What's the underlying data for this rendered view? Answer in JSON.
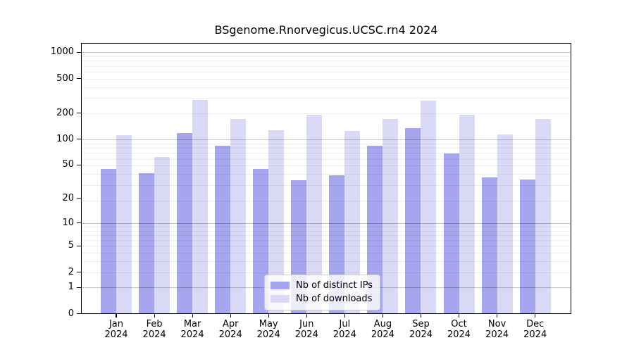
{
  "chart_data": {
    "type": "bar",
    "title": "BSgenome.Rnorvegicus.UCSC.rn4 2024",
    "categories": [
      "Jan 2024",
      "Feb 2024",
      "Mar 2024",
      "Apr 2024",
      "May 2024",
      "Jun 2024",
      "Jul 2024",
      "Aug 2024",
      "Sep 2024",
      "Oct 2024",
      "Nov 2024",
      "Dec 2024"
    ],
    "series": [
      {
        "name": "Nb of distinct IPs",
        "color": "#a6a6ee",
        "values": [
          45,
          40,
          118,
          84,
          45,
          33,
          38,
          84,
          135,
          68,
          36,
          34
        ]
      },
      {
        "name": "Nb of downloads",
        "color": "#d9d9f6",
        "values": [
          112,
          62,
          283,
          171,
          127,
          190,
          124,
          172,
          280,
          190,
          113,
          172
        ]
      }
    ],
    "xlabel": "",
    "ylabel": "",
    "y_scale": "log10(value+1)",
    "y_tick_values": [
      0,
      1,
      2,
      5,
      10,
      20,
      50,
      100,
      200,
      500,
      1000
    ],
    "major_gridline_values": [
      1,
      10,
      100,
      1000
    ],
    "minor_gridline_values": [
      2,
      3,
      4,
      5,
      6,
      7,
      8,
      9,
      19,
      29,
      39,
      49,
      59,
      69,
      79,
      89,
      199,
      299,
      399,
      499,
      599,
      699,
      799,
      899
    ],
    "ylim": [
      0,
      1280
    ],
    "grid": "horizontal major+minor, drawn over bars",
    "legend_position": "lower center",
    "colors": {
      "distinct_ips": "#a6a6ee",
      "downloads": "#d9d9f6",
      "major_grid": "#c6c6c6",
      "minor_grid": "#efefef",
      "axis": "#000000"
    }
  }
}
